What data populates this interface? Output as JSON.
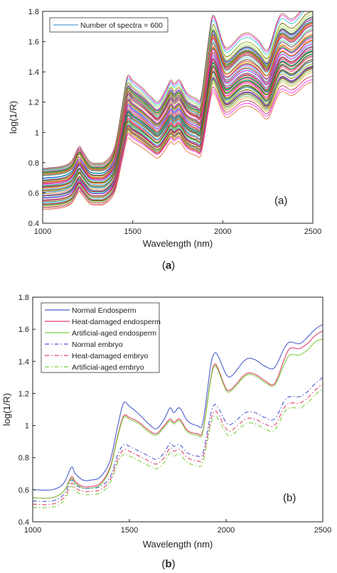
{
  "chart_data": [
    {
      "type": "line",
      "panel_tag": "(a)",
      "caption": "a",
      "xlabel": "Wavelength (nm)",
      "ylabel": "log(1/R)",
      "xlim": [
        1000,
        2500
      ],
      "ylim": [
        0.4,
        1.8
      ],
      "xticks": [
        1000,
        1500,
        2000,
        2500
      ],
      "yticks": [
        0.4,
        0.6,
        0.8,
        1.0,
        1.2,
        1.4,
        1.6,
        1.8
      ],
      "ytick_labels": [
        "0.4",
        "0.6",
        "0.8",
        "1",
        "1.2",
        "1.4",
        "1.6",
        "1.8"
      ],
      "grid": false,
      "legend": {
        "position": "top-left",
        "entries": [
          {
            "label": "Number of spectra = 600",
            "color": "#5aa0d8"
          }
        ]
      },
      "base_spectrum": {
        "x": [
          1000,
          1100,
          1160,
          1200,
          1220,
          1260,
          1300,
          1350,
          1400,
          1440,
          1470,
          1500,
          1550,
          1600,
          1640,
          1680,
          1710,
          1730,
          1760,
          1800,
          1850,
          1880,
          1920,
          1940,
          1960,
          2000,
          2030,
          2100,
          2150,
          2200,
          2250,
          2300,
          2330,
          2380,
          2420,
          2460,
          2500
        ],
        "y": [
          0.62,
          0.63,
          0.66,
          0.74,
          0.72,
          0.66,
          0.65,
          0.66,
          0.74,
          0.96,
          1.13,
          1.11,
          1.07,
          1.02,
          0.99,
          1.05,
          1.11,
          1.09,
          1.11,
          1.04,
          1.01,
          1.02,
          1.33,
          1.46,
          1.45,
          1.32,
          1.29,
          1.36,
          1.37,
          1.33,
          1.28,
          1.43,
          1.48,
          1.45,
          1.48,
          1.53,
          1.55
        ]
      },
      "spectra_shown": 600,
      "spectra_drawn": 90,
      "spread": {
        "offset_min": -0.12,
        "offset_max": 0.14,
        "scale_min": 0.86,
        "scale_max": 1.2
      }
    },
    {
      "type": "line",
      "panel_tag": "(b)",
      "caption": "b",
      "xlabel": "Wavelength (nm)",
      "ylabel": "log(1/R)",
      "xlim": [
        1000,
        2500
      ],
      "ylim": [
        0.4,
        1.8
      ],
      "xticks": [
        1000,
        1500,
        2000,
        2500
      ],
      "yticks": [
        0.4,
        0.6,
        0.8,
        1.0,
        1.2,
        1.4,
        1.6,
        1.8
      ],
      "ytick_labels": [
        "0.4",
        "0.6",
        "0.8",
        "1",
        "1.2",
        "1.4",
        "1.6",
        "1.8"
      ],
      "grid": false,
      "legend_position": "top-left",
      "series": [
        {
          "name": "Normal Endosperm",
          "color": "#4a5fd0",
          "dash": "solid",
          "x": [
            1000,
            1100,
            1160,
            1200,
            1220,
            1260,
            1300,
            1350,
            1400,
            1440,
            1470,
            1500,
            1550,
            1600,
            1640,
            1680,
            1710,
            1730,
            1760,
            1800,
            1850,
            1880,
            1920,
            1940,
            1960,
            2000,
            2030,
            2100,
            2150,
            2200,
            2250,
            2300,
            2330,
            2380,
            2420,
            2460,
            2500
          ],
          "y": [
            0.6,
            0.6,
            0.64,
            0.74,
            0.7,
            0.66,
            0.66,
            0.68,
            0.78,
            1.0,
            1.14,
            1.12,
            1.07,
            1.01,
            0.98,
            1.04,
            1.11,
            1.08,
            1.11,
            1.03,
            1.0,
            1.02,
            1.37,
            1.45,
            1.43,
            1.32,
            1.31,
            1.41,
            1.41,
            1.37,
            1.36,
            1.48,
            1.52,
            1.51,
            1.55,
            1.6,
            1.63
          ]
        },
        {
          "name": "Heat-damaged endosperm",
          "color": "#e0406a",
          "dash": "solid",
          "x": [
            1000,
            1100,
            1160,
            1200,
            1220,
            1260,
            1300,
            1350,
            1400,
            1440,
            1470,
            1500,
            1550,
            1600,
            1640,
            1680,
            1710,
            1730,
            1760,
            1800,
            1850,
            1880,
            1920,
            1940,
            1960,
            2000,
            2030,
            2100,
            2150,
            2200,
            2250,
            2300,
            2330,
            2380,
            2420,
            2460,
            2500
          ],
          "y": [
            0.55,
            0.55,
            0.59,
            0.68,
            0.65,
            0.62,
            0.62,
            0.64,
            0.74,
            0.94,
            1.06,
            1.05,
            1.02,
            0.97,
            0.95,
            1.0,
            1.04,
            1.02,
            1.04,
            0.97,
            0.95,
            0.97,
            1.29,
            1.38,
            1.35,
            1.23,
            1.23,
            1.32,
            1.32,
            1.28,
            1.26,
            1.41,
            1.48,
            1.48,
            1.51,
            1.56,
            1.59
          ]
        },
        {
          "name": "Artificial-aged endosperm",
          "color": "#7cd040",
          "dash": "solid",
          "x": [
            1000,
            1100,
            1160,
            1200,
            1220,
            1260,
            1300,
            1350,
            1400,
            1440,
            1470,
            1500,
            1550,
            1600,
            1640,
            1680,
            1710,
            1730,
            1760,
            1800,
            1850,
            1880,
            1920,
            1940,
            1960,
            2000,
            2030,
            2100,
            2150,
            2200,
            2250,
            2300,
            2330,
            2380,
            2420,
            2460,
            2500
          ],
          "y": [
            0.55,
            0.55,
            0.59,
            0.67,
            0.64,
            0.61,
            0.61,
            0.63,
            0.73,
            0.93,
            1.05,
            1.04,
            1.01,
            0.96,
            0.94,
            0.99,
            1.03,
            1.01,
            1.03,
            0.96,
            0.94,
            0.96,
            1.28,
            1.37,
            1.34,
            1.22,
            1.22,
            1.31,
            1.31,
            1.27,
            1.25,
            1.38,
            1.44,
            1.44,
            1.47,
            1.52,
            1.54
          ]
        },
        {
          "name": "Normal embryo",
          "color": "#4a5fd0",
          "dash": "dashdot",
          "x": [
            1000,
            1100,
            1160,
            1200,
            1220,
            1260,
            1300,
            1350,
            1400,
            1440,
            1470,
            1500,
            1550,
            1600,
            1640,
            1680,
            1710,
            1730,
            1760,
            1800,
            1850,
            1880,
            1920,
            1940,
            1960,
            2000,
            2030,
            2100,
            2150,
            2200,
            2250,
            2300,
            2330,
            2380,
            2420,
            2460,
            2500
          ],
          "y": [
            0.53,
            0.53,
            0.57,
            0.66,
            0.63,
            0.61,
            0.61,
            0.62,
            0.68,
            0.82,
            0.88,
            0.87,
            0.84,
            0.81,
            0.79,
            0.83,
            0.89,
            0.87,
            0.88,
            0.83,
            0.81,
            0.83,
            1.07,
            1.13,
            1.11,
            1.02,
            1.01,
            1.08,
            1.08,
            1.05,
            1.04,
            1.15,
            1.18,
            1.18,
            1.21,
            1.26,
            1.3
          ]
        },
        {
          "name": "Heat-damaged embryo",
          "color": "#e0406a",
          "dash": "dashdot",
          "x": [
            1000,
            1100,
            1160,
            1200,
            1220,
            1260,
            1300,
            1350,
            1400,
            1440,
            1470,
            1500,
            1550,
            1600,
            1640,
            1680,
            1710,
            1730,
            1760,
            1800,
            1850,
            1880,
            1920,
            1940,
            1960,
            2000,
            2030,
            2100,
            2150,
            2200,
            2250,
            2300,
            2330,
            2380,
            2420,
            2460,
            2500
          ],
          "y": [
            0.51,
            0.51,
            0.55,
            0.64,
            0.61,
            0.59,
            0.59,
            0.6,
            0.66,
            0.79,
            0.85,
            0.84,
            0.81,
            0.78,
            0.76,
            0.8,
            0.86,
            0.84,
            0.85,
            0.8,
            0.78,
            0.8,
            1.03,
            1.09,
            1.07,
            0.98,
            0.97,
            1.04,
            1.04,
            1.01,
            1.0,
            1.11,
            1.14,
            1.14,
            1.17,
            1.22,
            1.26
          ]
        },
        {
          "name": "Artificial-aged embryo",
          "color": "#7cd040",
          "dash": "dashdot",
          "x": [
            1000,
            1100,
            1160,
            1200,
            1220,
            1260,
            1300,
            1350,
            1400,
            1440,
            1470,
            1500,
            1550,
            1600,
            1640,
            1680,
            1710,
            1730,
            1760,
            1800,
            1850,
            1880,
            1920,
            1940,
            1960,
            2000,
            2030,
            2100,
            2150,
            2200,
            2250,
            2300,
            2330,
            2380,
            2420,
            2460,
            2500
          ],
          "y": [
            0.49,
            0.49,
            0.53,
            0.62,
            0.59,
            0.57,
            0.57,
            0.58,
            0.64,
            0.77,
            0.82,
            0.81,
            0.78,
            0.75,
            0.73,
            0.77,
            0.83,
            0.81,
            0.82,
            0.77,
            0.75,
            0.77,
            1.0,
            1.06,
            1.04,
            0.95,
            0.94,
            1.01,
            1.01,
            0.98,
            0.97,
            1.08,
            1.11,
            1.11,
            1.14,
            1.19,
            1.23
          ]
        }
      ]
    }
  ]
}
